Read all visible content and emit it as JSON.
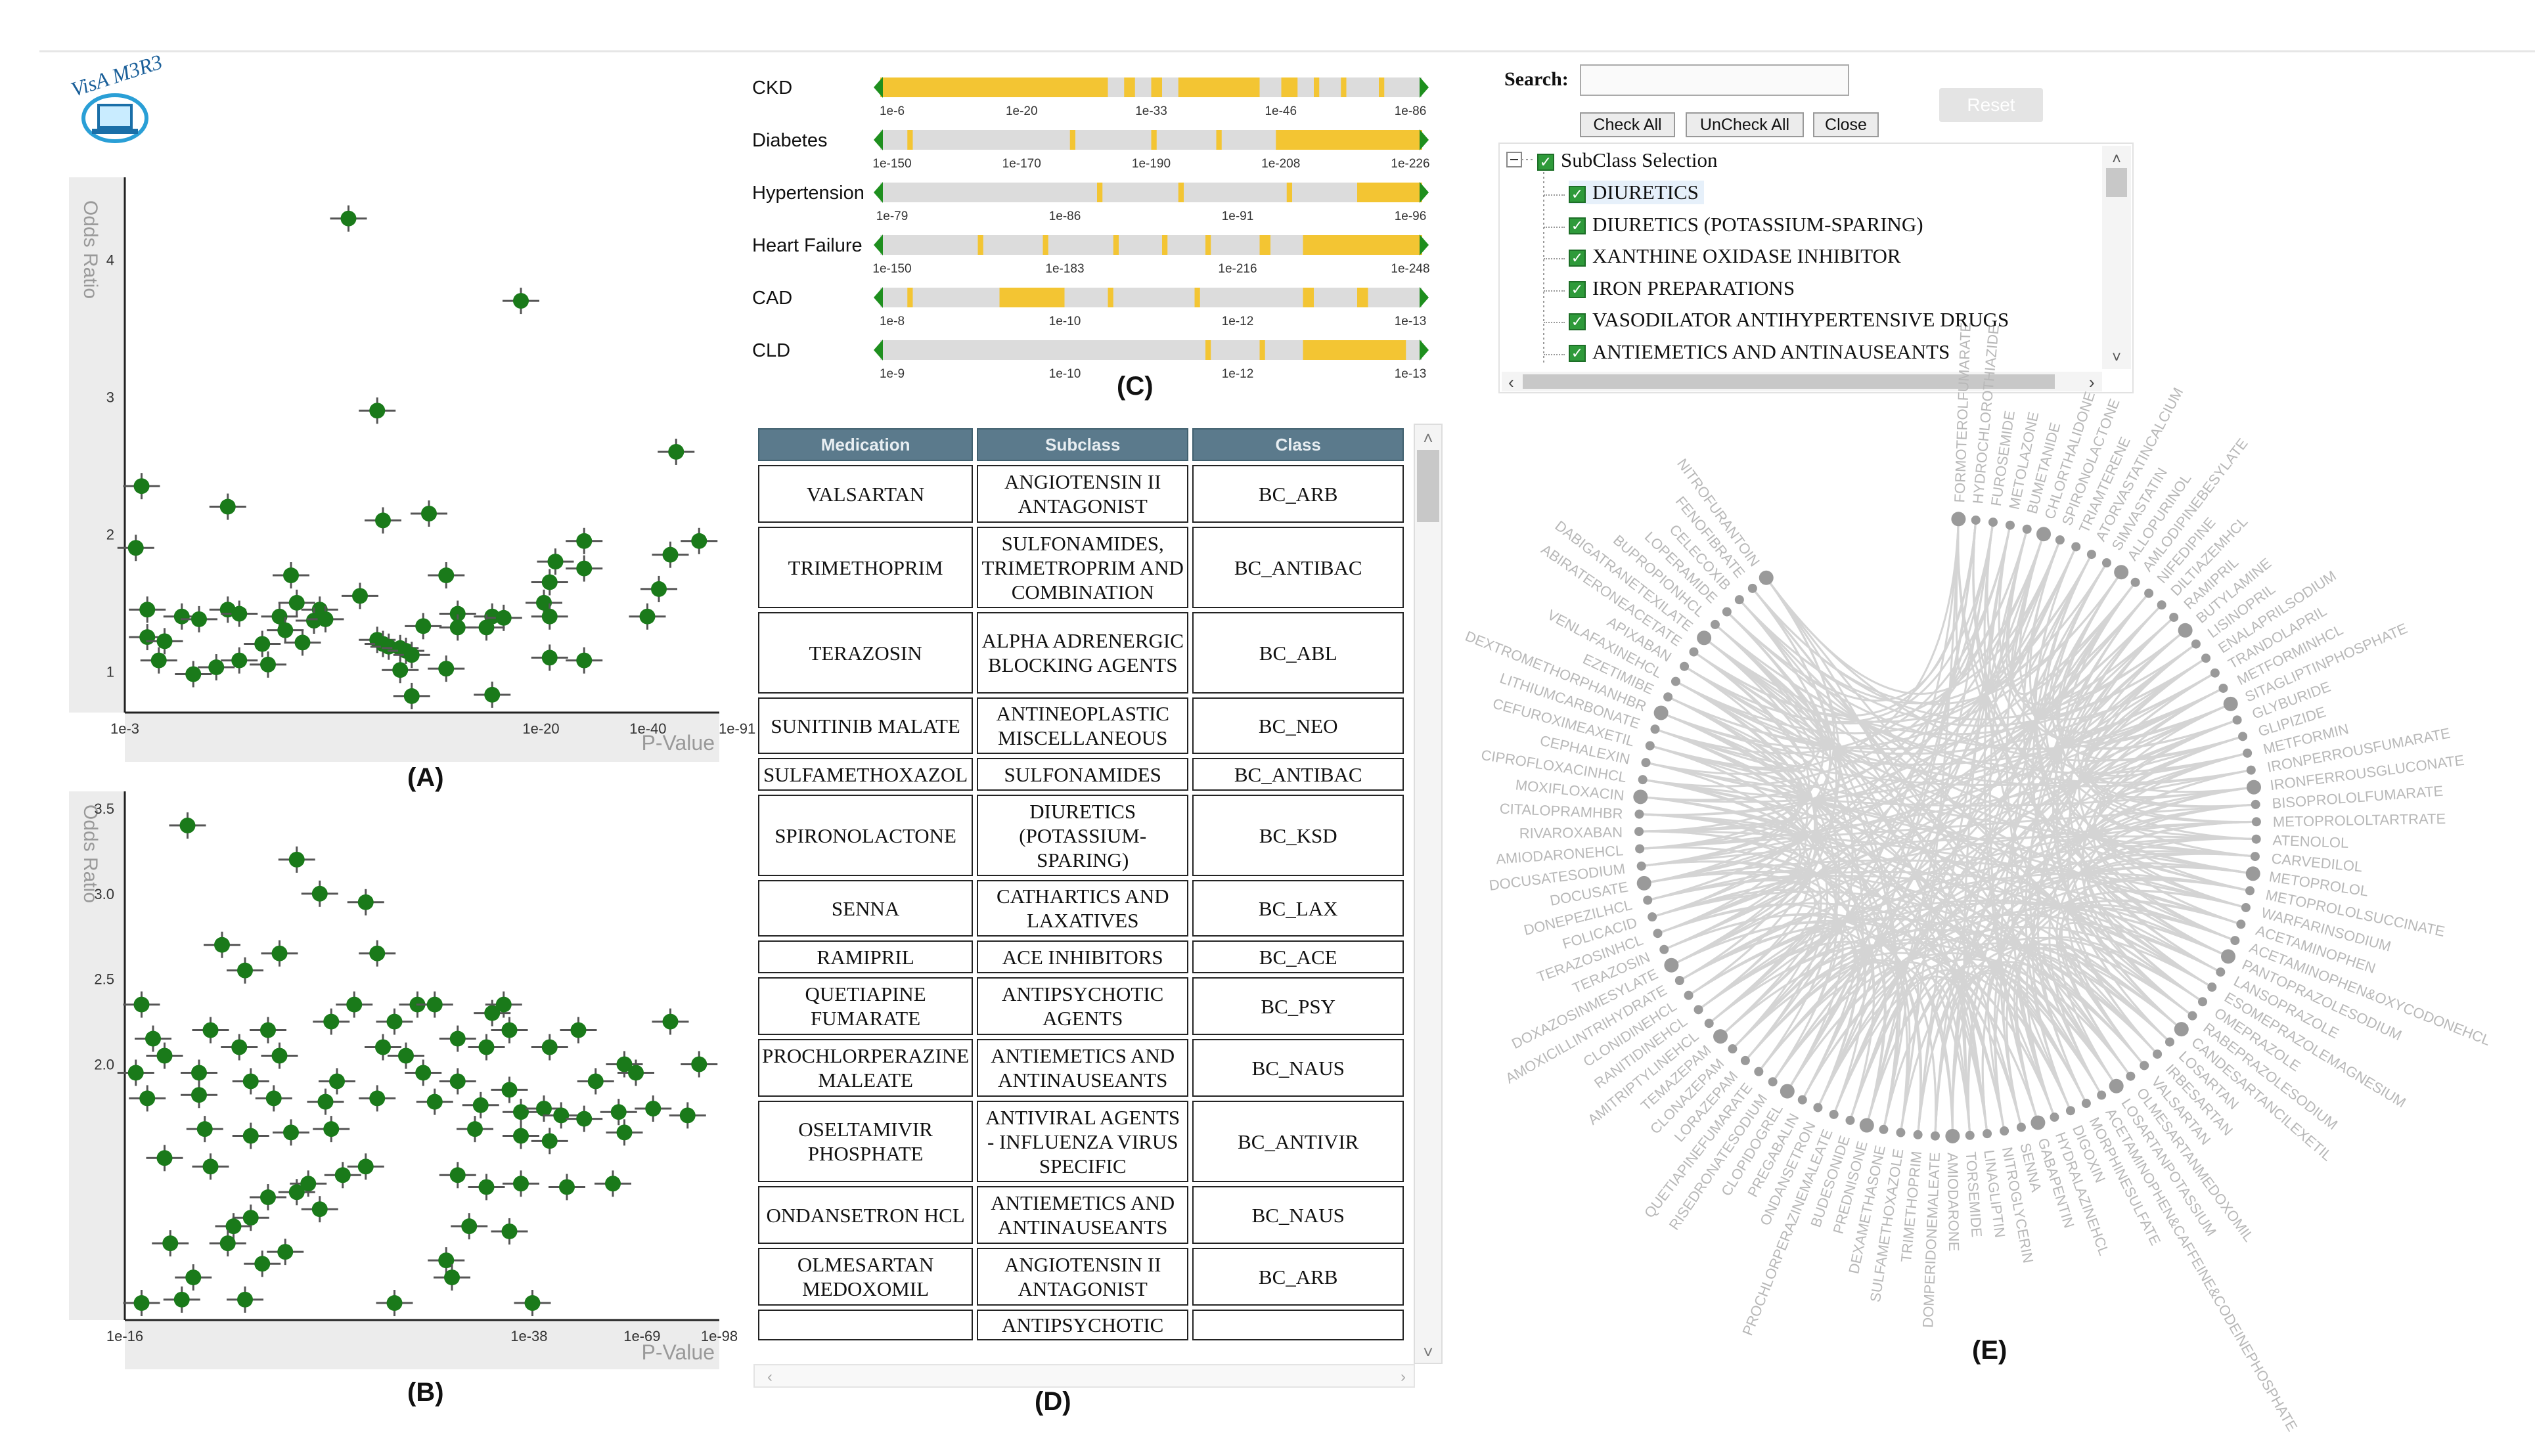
{
  "colors": {
    "point": "#1a7a1a",
    "bar_fill": "#f3c533",
    "bar_bg": "#dcdcdc",
    "bar_handle": "#1e8f1e",
    "header_bg": "#5b7a8c",
    "network_line": "#d4d4d4",
    "network_label": "#b8b8b8"
  },
  "panel_labels": {
    "a": "(A)",
    "b": "(B)",
    "c": "(C)",
    "d": "(D)",
    "e": "(E)"
  },
  "logo": {
    "text": "VisA M3R3",
    "icon": "laptop-logo-icon"
  },
  "scatter_a": {
    "ylabel": "Odds Ratio",
    "xlabel": "P-Value",
    "yticks": [
      "4",
      "3",
      "2",
      "1"
    ],
    "xticks": [
      "1e-3",
      "1e-20",
      "1e-40",
      "1e-91"
    ],
    "points": [
      [
        0.38,
        4.3
      ],
      [
        0.68,
        3.7
      ],
      [
        0.43,
        2.9
      ],
      [
        0.95,
        2.6
      ],
      [
        0.02,
        2.35
      ],
      [
        0.17,
        2.2
      ],
      [
        0.44,
        2.1
      ],
      [
        0.52,
        2.15
      ],
      [
        0.79,
        1.95
      ],
      [
        0.94,
        1.85
      ],
      [
        0.99,
        1.95
      ],
      [
        0.01,
        1.9
      ],
      [
        0.74,
        1.8
      ],
      [
        0.79,
        1.75
      ],
      [
        0.28,
        1.7
      ],
      [
        0.55,
        1.7
      ],
      [
        0.73,
        1.65
      ],
      [
        0.92,
        1.6
      ],
      [
        0.4,
        1.55
      ],
      [
        0.29,
        1.5
      ],
      [
        0.72,
        1.5
      ],
      [
        0.03,
        1.45
      ],
      [
        0.17,
        1.45
      ],
      [
        0.33,
        1.45
      ],
      [
        0.09,
        1.4
      ],
      [
        0.12,
        1.38
      ],
      [
        0.19,
        1.42
      ],
      [
        0.26,
        1.4
      ],
      [
        0.32,
        1.37
      ],
      [
        0.34,
        1.38
      ],
      [
        0.57,
        1.42
      ],
      [
        0.63,
        1.4
      ],
      [
        0.65,
        1.39
      ],
      [
        0.73,
        1.4
      ],
      [
        0.9,
        1.4
      ],
      [
        0.51,
        1.33
      ],
      [
        0.57,
        1.32
      ],
      [
        0.62,
        1.32
      ],
      [
        0.27,
        1.3
      ],
      [
        0.03,
        1.25
      ],
      [
        0.06,
        1.22
      ],
      [
        0.23,
        1.2
      ],
      [
        0.3,
        1.21
      ],
      [
        0.43,
        1.23
      ],
      [
        0.44,
        1.2
      ],
      [
        0.45,
        1.18
      ],
      [
        0.47,
        1.17
      ],
      [
        0.48,
        1.15
      ],
      [
        0.49,
        1.12
      ],
      [
        0.05,
        1.08
      ],
      [
        0.19,
        1.08
      ],
      [
        0.24,
        1.05
      ],
      [
        0.15,
        1.03
      ],
      [
        0.47,
        1.01
      ],
      [
        0.55,
        1.02
      ],
      [
        0.73,
        1.1
      ],
      [
        0.79,
        1.08
      ],
      [
        0.11,
        0.98
      ],
      [
        0.49,
        0.82
      ],
      [
        0.63,
        0.83
      ]
    ]
  },
  "scatter_b": {
    "ylabel": "Odds Ratio",
    "xlabel": "P-Value",
    "yticks": [
      "3.5",
      "3.0",
      "2.5",
      "2.0"
    ],
    "xticks": [
      "1e-16",
      "1e-38",
      "1e-69",
      "1e-98"
    ],
    "points": [
      [
        0.1,
        3.4
      ],
      [
        0.29,
        3.2
      ],
      [
        0.33,
        3.0
      ],
      [
        0.41,
        2.95
      ],
      [
        0.16,
        2.7
      ],
      [
        0.26,
        2.65
      ],
      [
        0.43,
        2.65
      ],
      [
        0.2,
        2.55
      ],
      [
        0.02,
        2.35
      ],
      [
        0.39,
        2.35
      ],
      [
        0.5,
        2.35
      ],
      [
        0.53,
        2.35
      ],
      [
        0.63,
        2.3
      ],
      [
        0.65,
        2.35
      ],
      [
        0.04,
        2.15
      ],
      [
        0.14,
        2.2
      ],
      [
        0.24,
        2.2
      ],
      [
        0.35,
        2.25
      ],
      [
        0.46,
        2.25
      ],
      [
        0.57,
        2.15
      ],
      [
        0.66,
        2.2
      ],
      [
        0.78,
        2.2
      ],
      [
        0.94,
        2.25
      ],
      [
        0.06,
        2.05
      ],
      [
        0.19,
        2.1
      ],
      [
        0.26,
        2.05
      ],
      [
        0.44,
        2.1
      ],
      [
        0.48,
        2.05
      ],
      [
        0.62,
        2.1
      ],
      [
        0.73,
        2.1
      ],
      [
        0.86,
        2.0
      ],
      [
        0.99,
        2.0
      ],
      [
        0.01,
        1.95
      ],
      [
        0.12,
        1.95
      ],
      [
        0.21,
        1.9
      ],
      [
        0.36,
        1.9
      ],
      [
        0.51,
        1.95
      ],
      [
        0.57,
        1.9
      ],
      [
        0.66,
        1.85
      ],
      [
        0.81,
        1.9
      ],
      [
        0.88,
        1.95
      ],
      [
        0.03,
        1.8
      ],
      [
        0.12,
        1.82
      ],
      [
        0.25,
        1.8
      ],
      [
        0.34,
        1.78
      ],
      [
        0.43,
        1.8
      ],
      [
        0.53,
        1.78
      ],
      [
        0.61,
        1.76
      ],
      [
        0.68,
        1.72
      ],
      [
        0.72,
        1.74
      ],
      [
        0.75,
        1.7
      ],
      [
        0.79,
        1.68
      ],
      [
        0.85,
        1.72
      ],
      [
        0.91,
        1.74
      ],
      [
        0.97,
        1.7
      ],
      [
        0.13,
        1.62
      ],
      [
        0.21,
        1.58
      ],
      [
        0.28,
        1.6
      ],
      [
        0.35,
        1.62
      ],
      [
        0.6,
        1.62
      ],
      [
        0.68,
        1.58
      ],
      [
        0.73,
        1.55
      ],
      [
        0.86,
        1.6
      ],
      [
        0.06,
        1.45
      ],
      [
        0.14,
        1.4
      ],
      [
        0.31,
        1.3
      ],
      [
        0.37,
        1.35
      ],
      [
        0.41,
        1.4
      ],
      [
        0.57,
        1.35
      ],
      [
        0.62,
        1.28
      ],
      [
        0.68,
        1.3
      ],
      [
        0.76,
        1.28
      ],
      [
        0.84,
        1.3
      ],
      [
        0.24,
        1.22
      ],
      [
        0.29,
        1.25
      ],
      [
        0.21,
        1.1
      ],
      [
        0.33,
        1.15
      ],
      [
        0.18,
        1.05
      ],
      [
        0.59,
        1.05
      ],
      [
        0.66,
        1.02
      ],
      [
        0.07,
        0.95
      ],
      [
        0.17,
        0.95
      ],
      [
        0.27,
        0.9
      ],
      [
        0.23,
        0.83
      ],
      [
        0.55,
        0.85
      ],
      [
        0.11,
        0.75
      ],
      [
        0.56,
        0.75
      ],
      [
        0.02,
        0.6
      ],
      [
        0.09,
        0.62
      ],
      [
        0.2,
        0.62
      ],
      [
        0.46,
        0.6
      ],
      [
        0.7,
        0.6
      ]
    ]
  },
  "timelines": [
    {
      "name": "CKD",
      "ticks": [
        "1e-6",
        "1e-20",
        "1e-33",
        "1e-46",
        "1e-86"
      ],
      "bands": [
        [
          0.0,
          0.42
        ],
        [
          0.45,
          0.47
        ],
        [
          0.5,
          0.52
        ],
        [
          0.55,
          0.7
        ],
        [
          0.74,
          0.77
        ],
        [
          0.8,
          0.81
        ],
        [
          0.85,
          0.86
        ],
        [
          0.92,
          0.93
        ]
      ]
    },
    {
      "name": "Diabetes",
      "ticks": [
        "1e-150",
        "1e-170",
        "1e-190",
        "1e-208",
        "1e-226"
      ],
      "bands": [
        [
          0.05,
          0.06
        ],
        [
          0.35,
          0.36
        ],
        [
          0.5,
          0.51
        ],
        [
          0.62,
          0.63
        ],
        [
          0.73,
          1.0
        ]
      ]
    },
    {
      "name": "Hypertension",
      "ticks": [
        "1e-79",
        "1e-86",
        "1e-91",
        "1e-96"
      ],
      "bands": [
        [
          0.4,
          0.41
        ],
        [
          0.55,
          0.56
        ],
        [
          0.75,
          0.76
        ],
        [
          0.88,
          1.0
        ]
      ]
    },
    {
      "name": "Heart Failure",
      "ticks": [
        "1e-150",
        "1e-183",
        "1e-216",
        "1e-248"
      ],
      "bands": [
        [
          0.18,
          0.19
        ],
        [
          0.3,
          0.31
        ],
        [
          0.43,
          0.44
        ],
        [
          0.52,
          0.53
        ],
        [
          0.6,
          0.61
        ],
        [
          0.7,
          0.72
        ],
        [
          0.78,
          1.0
        ]
      ]
    },
    {
      "name": "CAD",
      "ticks": [
        "1e-8",
        "1e-10",
        "1e-12",
        "1e-13"
      ],
      "bands": [
        [
          0.05,
          0.06
        ],
        [
          0.22,
          0.34
        ],
        [
          0.42,
          0.43
        ],
        [
          0.58,
          0.59
        ],
        [
          0.78,
          0.8
        ],
        [
          0.88,
          0.9
        ]
      ]
    },
    {
      "name": "CLD",
      "ticks": [
        "1e-9",
        "1e-10",
        "1e-12",
        "1e-13"
      ],
      "bands": [
        [
          0.6,
          0.61
        ],
        [
          0.7,
          0.71
        ],
        [
          0.78,
          0.97
        ]
      ]
    }
  ],
  "table": {
    "headers": [
      "Medication",
      "Subclass",
      "Class"
    ],
    "rows": [
      [
        "VALSARTAN",
        "ANGIOTENSIN II ANTAGONIST",
        "BC_ARB"
      ],
      [
        "TRIMETHOPRIM",
        "SULFONAMIDES, TRIMETROPRIM AND COMBINATION",
        "BC_ANTIBAC"
      ],
      [
        "TERAZOSIN",
        "ALPHA ADRENERGIC BLOCKING AGENTS",
        "BC_ABL"
      ],
      [
        "SUNITINIB MALATE",
        "ANTINEOPLASTIC MISCELLANEOUS",
        "BC_NEO"
      ],
      [
        "SULFAMETHOXAZOL",
        "SULFONAMIDES",
        "BC_ANTIBAC"
      ],
      [
        "SPIRONOLACTONE",
        "DIURETICS (POTASSIUM-SPARING)",
        "BC_KSD"
      ],
      [
        "SENNA",
        "CATHARTICS AND LAXATIVES",
        "BC_LAX"
      ],
      [
        "RAMIPRIL",
        "ACE INHIBITORS",
        "BC_ACE"
      ],
      [
        "QUETIAPINE FUMARATE",
        "ANTIPSYCHOTIC AGENTS",
        "BC_PSY"
      ],
      [
        "PROCHLORPERAZINE MALEATE",
        "ANTIEMETICS AND ANTINAUSEANTS",
        "BC_NAUS"
      ],
      [
        "OSELTAMIVIR PHOSPHATE",
        "ANTIVIRAL AGENTS - INFLUENZA VIRUS SPECIFIC",
        "BC_ANTIVIR"
      ],
      [
        "ONDANSETRON HCL",
        "ANTIEMETICS AND ANTINAUSEANTS",
        "BC_NAUS"
      ],
      [
        "OLMESARTAN MEDOXOMIL",
        "ANGIOTENSIN II ANTAGONIST",
        "BC_ARB"
      ],
      [
        "",
        "ANTIPSYCHOTIC",
        ""
      ]
    ]
  },
  "search_panel": {
    "label": "Search:",
    "value": "",
    "reset": "Reset",
    "check_all": "Check All",
    "uncheck_all": "UnCheck All",
    "close": "Close",
    "root": "SubClass Selection",
    "items": [
      "DIURETICS",
      "DIURETICS (POTASSIUM-SPARING)",
      "XANTHINE OXIDASE INHIBITOR",
      "IRON PREPARATIONS",
      "VASODILATOR ANTIHYPERTENSIVE DRUGS",
      "ANTIEMETICS AND ANTINAUSEANTS"
    ]
  },
  "network": {
    "labels": [
      "FORMOTEROLFUMARATE",
      "HYDROCHLOROTHIAZIDE",
      "FUROSEMIDE",
      "METOLAZONE",
      "BUMETANIDE",
      "CHLORTHALIDONE",
      "SPIRONOLACTONE",
      "TRIAMTERENE",
      "ATORVASTATINCALCIUM",
      "SIMVASTATIN",
      "ALLOPURINOL",
      "AMLODIPINEBESYLATE",
      "NIFEDIPINE",
      "DILTIAZEMHCL",
      "RAMIPRIL",
      "BUTYLAMINE",
      "LISINOPRIL",
      "ENALAPRILSODIUM",
      "TRANDOLAPRIL",
      "METFORMINHCL",
      "SITAGLIPTINPHOSPHATE",
      "GLYBURIDE",
      "GLIPIZIDE",
      "METFORMIN",
      "IRONPERROUSFUMARATE",
      "IRONFERROUSGLUCONATE",
      "BISOPROLOLFUMARATE",
      "METOPROLOLTARTRATE",
      "ATENOLOL",
      "CARVEDILOL",
      "METOPROLOL",
      "METOPROLOLSUCCINATE",
      "WARFARINSODIUM",
      "ACETAMINOPHEN",
      "ACETAMINOPHEN&OXYCODONEHCL",
      "PANTOPRAZOLESODIUM",
      "LANSOPRAZOLE",
      "ESOMEPRAZOLEMAGNESIUM",
      "OMEPRAZOLE",
      "RABEPRAZOLESODIUM",
      "CANDESARTANCILEXETIL",
      "LOSARTAN",
      "IRBESARTAN",
      "VALSARTAN",
      "OLMESARTANMEDOXOMIL",
      "LOSARTANPOTASSIUM",
      "ACETAMINOPHEN&CAFFEINE&CODEINEPHOSPHATE",
      "MORPHINESULFATE",
      "DIGOXIN",
      "HYDRALAZINEHCL",
      "GABAPENTIN",
      "SENNA",
      "NITROGLYCERIN",
      "LINAGLIPTIN",
      "TORSEMIDE",
      "AMIODARONE",
      "DOMPERIDONEMALEATE",
      "TRIMETHOPRIM",
      "SULFAMETHOXAZOLE",
      "DEXAMETHASONE",
      "PREDNISONE",
      "BUDESONIDE",
      "PROCHLORPERAZINEMALEATE",
      "ONDANSETRON",
      "PREGABALIN",
      "CLOPIDOGREL",
      "RISEDRONATESODIUM",
      "QUETIAPINEFUMARATE",
      "LORAZEPAM",
      "CLONAZEPAM",
      "TEMAZEPAM",
      "AMITRIPTYLINEHCL",
      "RANITIDINEHCL",
      "CLONIDINEHCL",
      "AMOXICILLINTRIHYDRATE",
      "DOXAZOSINMESYLATE",
      "TERAZOSIN",
      "TERAZOSINHCL",
      "FOLICACID",
      "DONEPEZILHCL",
      "DOCUSATE",
      "DOCUSATESODIUM",
      "AMIODARONEHCL",
      "RIVAROXABAN",
      "CITALOPRAMHBR",
      "MOXIFLOXACIN",
      "CIPROFLOXACINHCL",
      "CEPHALEXIN",
      "CEFUROXIMEAXETIL",
      "LITHIUMCARBONATE",
      "DEXTROMETHORPHANHBR",
      "EZETIMIBE",
      "VENLAFAXINEHCL",
      "APIXABAN",
      "ABIRATERONEACETATE",
      "DABIGATRANETEXILATE",
      "BUPROPIONHCL",
      "LOPERAMIDE",
      "CELECOXIB",
      "FENOFIBRATE",
      "NITROFURANTOIN"
    ]
  }
}
